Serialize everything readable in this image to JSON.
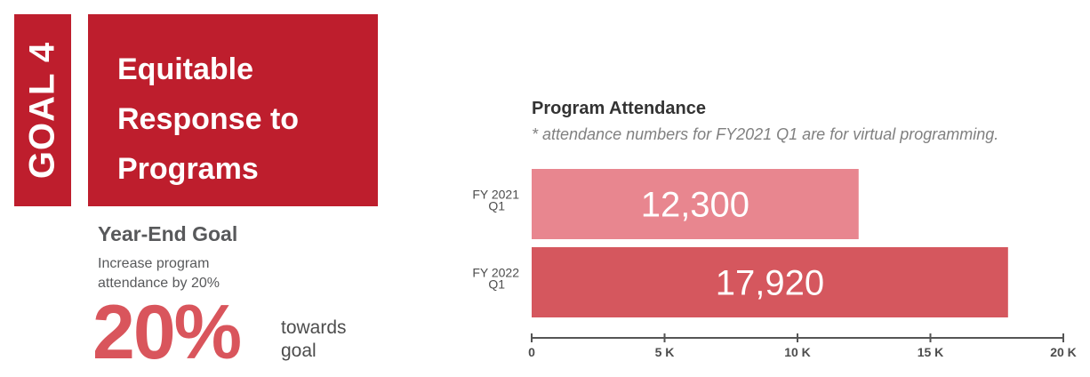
{
  "goal": {
    "tab_label": "GOAL 4",
    "title": "Equitable Response to Programs"
  },
  "year_end": {
    "heading": "Year-End Goal",
    "description": "Increase program attendance by 20%",
    "progress_value": "20%",
    "progress_caption": "towards goal"
  },
  "colors": {
    "goal_red": "#be1e2d",
    "accent": "#d9555c",
    "bar_fy2021": "#e8868f",
    "bar_fy2022": "#d5575e"
  },
  "chart_data": {
    "type": "bar",
    "orientation": "horizontal",
    "title": "Program Attendance",
    "subtitle": "* attendance numbers for FY2021 Q1 are for virtual programming.",
    "categories": [
      [
        "FY 2021",
        "Q1"
      ],
      [
        "FY 2022",
        "Q1"
      ]
    ],
    "values": [
      12300,
      17920
    ],
    "data_labels": [
      "12,300",
      "17,920"
    ],
    "xlim": [
      0,
      20000
    ],
    "ticks": [
      0,
      5000,
      10000,
      15000,
      20000
    ],
    "tick_labels": [
      "0",
      "5 K",
      "10 K",
      "15 K",
      "20 K"
    ],
    "grid": false
  }
}
